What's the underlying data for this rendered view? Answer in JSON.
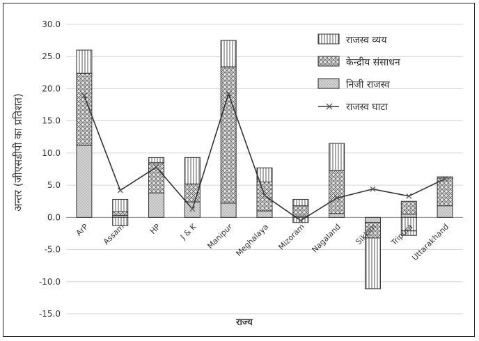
{
  "chart_data": {
    "type": "bar",
    "stacked": true,
    "xlabel": "राज्य",
    "ylabel": "अन्तर (जीएसडीपी का प्रतिशत)",
    "ylim": [
      -15,
      30
    ],
    "yticks": [
      "30.0",
      "25.0",
      "20.0",
      "15.0",
      "10.0",
      "5.0",
      "0.0",
      "-5.0",
      "-10.0",
      "-15.0"
    ],
    "grid": true,
    "legend_position": "top-right",
    "categories": [
      "ArP",
      "Assam",
      "HP",
      "J & K",
      "Manipur",
      "Meghalaya",
      "Mizoram",
      "Nagaland",
      "Sikkim",
      "Tripura",
      "Uttarakhand"
    ],
    "series": [
      {
        "name": "निजी राजस्व",
        "pattern": "dots-light",
        "values": [
          11.2,
          0.3,
          3.8,
          2.4,
          2.2,
          1.0,
          0.2,
          0.6,
          -0.8,
          0.5,
          1.8
        ]
      },
      {
        "name": "केन्द्रीय संसाधन",
        "pattern": "cross-hatch",
        "values": [
          11.2,
          0.6,
          4.7,
          2.8,
          21.2,
          4.5,
          1.6,
          6.7,
          -2.4,
          2.0,
          4.3
        ]
      },
      {
        "name": "राजस्व व्यय",
        "pattern": "vertical-stripes",
        "values": [
          3.6,
          1.9,
          0.8,
          4.1,
          4.1,
          2.2,
          1.0,
          4.2,
          -7.9,
          -2.1,
          0.2
        ]
      },
      {
        "name": "राजस्व व्यय",
        "pattern": "vertical-stripes",
        "values": [
          0,
          -1.3,
          0,
          0,
          0,
          0,
          -0.8,
          0,
          0,
          -0.7,
          0
        ]
      }
    ],
    "line_series": {
      "name": "राजस्व घाटा",
      "values": [
        18.9,
        4.2,
        7.8,
        1.3,
        19.2,
        3.4,
        -0.5,
        3.0,
        4.4,
        3.3,
        6.0
      ]
    },
    "legend": [
      "राजस्व व्यय",
      "केन्द्रीय संसाधन",
      "निजी राजस्व",
      "राजस्व घाटा"
    ]
  }
}
